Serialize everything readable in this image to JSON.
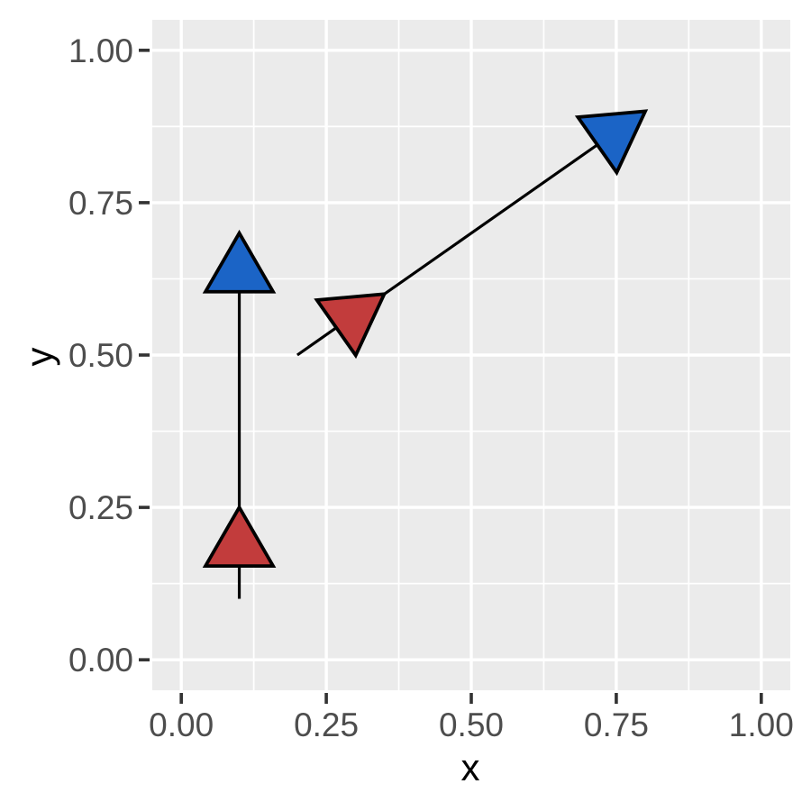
{
  "figure": {
    "background_color": "#FFFFFF"
  },
  "chart_data": {
    "type": "line",
    "subtype": "arrow-segments",
    "title": "",
    "xlabel": "x",
    "ylabel": "y",
    "xlim": [
      -0.05,
      1.05
    ],
    "ylim": [
      -0.05,
      1.05
    ],
    "x_ticks": [
      0,
      0.25,
      0.5,
      0.75,
      1
    ],
    "y_ticks": [
      0,
      0.25,
      0.5,
      0.75,
      1
    ],
    "x_tick_labels": [
      "0.00",
      "0.25",
      "0.50",
      "0.75",
      "1.00"
    ],
    "y_tick_labels": [
      "0.00",
      "0.25",
      "0.50",
      "0.75",
      "1.00"
    ],
    "x_minor_ticks": [
      0.125,
      0.375,
      0.625,
      0.875
    ],
    "y_minor_ticks": [
      0.125,
      0.375,
      0.625,
      0.875
    ],
    "grid": {
      "major": true,
      "minor": true
    },
    "legend": "none",
    "segments": [
      {
        "x": 0.1,
        "y": 0.1,
        "xend": 0.1,
        "yend": 0.7
      },
      {
        "x": 0.2,
        "y": 0.5,
        "xend": 0.8,
        "yend": 0.9
      }
    ],
    "arrows": {
      "positions": [
        0.25,
        1.0
      ],
      "type": "closed",
      "angle_deg": 30,
      "fills": [
        "#C23C3C",
        "#1B64C6"
      ]
    },
    "colors": {
      "panel_background": "#EBEBEB",
      "grid": "#FFFFFF",
      "segment": "#000000",
      "arrow_outline": "#000000",
      "tick_mark": "#333333",
      "tick_label": "#4D4D4D",
      "axis_title": "#000000"
    }
  }
}
